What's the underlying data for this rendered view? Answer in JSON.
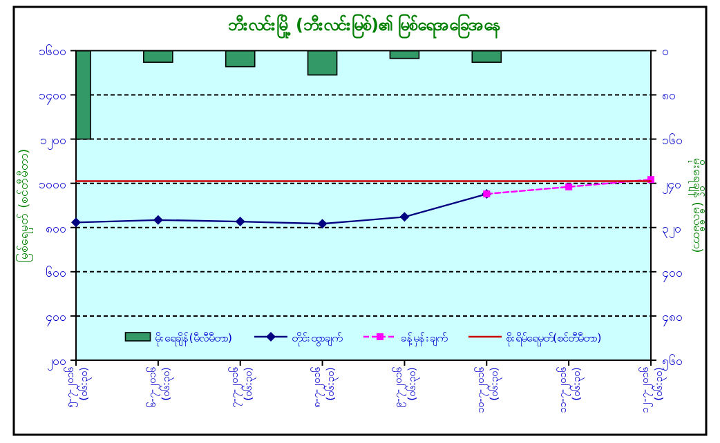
{
  "chart_data": {
    "type": "line",
    "title": "ဘီးလင်းမြို့ (ဘီးလင်းမြစ်)၏ မြစ်ရေအခြေအနေ",
    "ylabel": "မြစ်ရေမှတ် (စင်တီမီတာ)",
    "y2label": "မိုးရေချိန် (မီလီမီတာ)",
    "categories": [
      "၅-၇-၂၀၁၆\n(၀၆:၃၀)",
      "၆-၇-၂၀၁၆\n(၀၆:၃၀)",
      "၇-၇-၂၀၁၆\n(၀၆:၃၀)",
      "၈-၇-၂၀၁၆\n(၀၆:၃၀)",
      "၉-၇-၂၀၁၆\n(၀၆:၃၀)",
      "၁၀-၇-၂၀၁၆\n(၀၆:၃၀)",
      "၁၁-၇-၂၀၁၆\n(၀၆:၃၀)",
      "၁၂-၇-၂၀၁၆\n(၀၆:၃၀)"
    ],
    "series": [
      {
        "name": "မိုးရေချိန်(မီလီမီတာ)",
        "type": "bar",
        "axis": "y2",
        "color": "#339966",
        "values": [
          160,
          21,
          29,
          44,
          14,
          21,
          null,
          null
        ]
      },
      {
        "name": "တိုင်းထွာချက်",
        "color": "#000080",
        "marker": "diamond",
        "line_style": "solid",
        "values": [
          823,
          834,
          827,
          817,
          848,
          952,
          null,
          null
        ]
      },
      {
        "name": "ခန့်မှန်းချက်",
        "color": "#ff00ff",
        "marker": "square",
        "line_style": "dashed",
        "values": [
          null,
          null,
          null,
          null,
          null,
          952,
          984,
          1017
        ]
      },
      {
        "name": "စိုးရိမ်ရေမှတ်(စင်တီမီတာ)",
        "color": "#cc0000",
        "marker": "none",
        "line_style": "solid",
        "values": [
          1010,
          1010,
          1010,
          1010,
          1010,
          1010,
          1010,
          1010
        ]
      }
    ],
    "ylim": [
      200,
      1600
    ],
    "yticks": [
      {
        "value": 200,
        "label": "၂၀၀"
      },
      {
        "value": 400,
        "label": "၄၀၀"
      },
      {
        "value": 600,
        "label": "၆၀၀"
      },
      {
        "value": 800,
        "label": "၈၀၀"
      },
      {
        "value": 1000,
        "label": "၁၀၀၀"
      },
      {
        "value": 1200,
        "label": "၁၂၀၀"
      },
      {
        "value": 1400,
        "label": "၁၄၀၀"
      },
      {
        "value": 1600,
        "label": "၁၆၀၀"
      }
    ],
    "y2lim": [
      560,
      0
    ],
    "y2ticks": [
      {
        "value": 0,
        "label": "၀"
      },
      {
        "value": 80,
        "label": "၈၀"
      },
      {
        "value": 160,
        "label": "၁၆၀"
      },
      {
        "value": 240,
        "label": "၂၄၀"
      },
      {
        "value": 320,
        "label": "၃၂၀"
      },
      {
        "value": 400,
        "label": "၄၀၀"
      },
      {
        "value": 480,
        "label": "၄၈၀"
      },
      {
        "value": 560,
        "label": "၅၆၀"
      }
    ],
    "grid": "y",
    "legend": "bottom"
  }
}
